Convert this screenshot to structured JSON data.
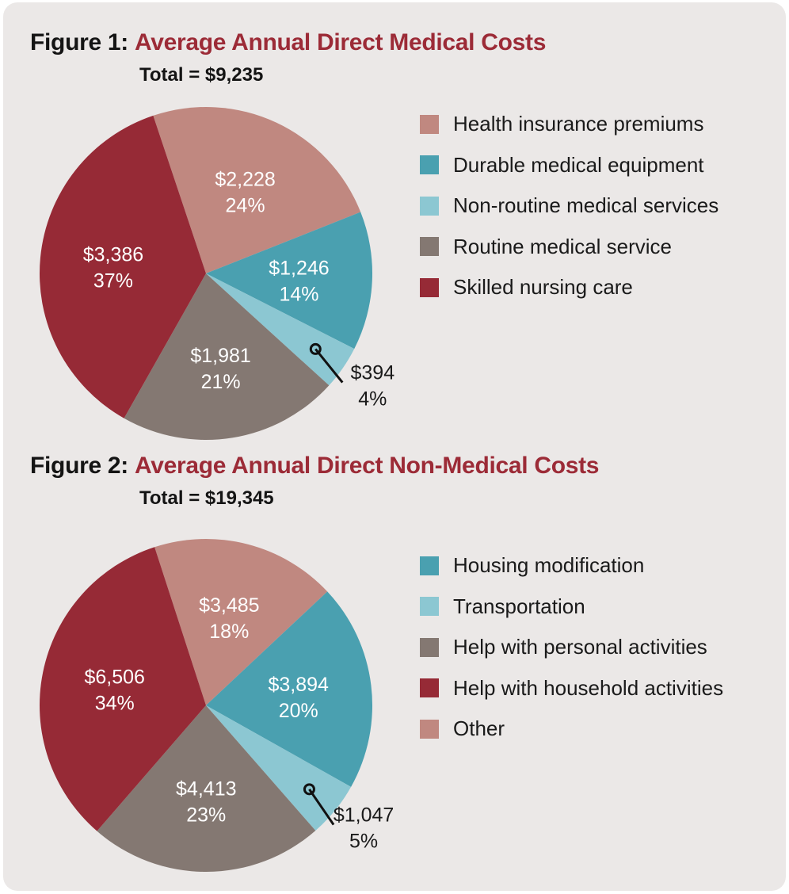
{
  "colors": {
    "health_insurance": "#c08880",
    "durable_equipment": "#4aa0b0",
    "non_routine": "#8cc7d2",
    "routine": "#847872",
    "skilled_nursing": "#962a36",
    "housing": "#4aa0b0",
    "transportation": "#8cc7d2",
    "personal": "#847872",
    "household": "#962a36",
    "other": "#c08880"
  },
  "chart_data": [
    {
      "type": "pie",
      "figure_label": "Figure 1:",
      "title": "Average Annual Direct Medical Costs",
      "subtitle": "Total = $9,235",
      "legend_position": "right",
      "slices": [
        {
          "name": "Health insurance premiums",
          "value": 2228,
          "value_label": "$2,228",
          "percent_label": "24%",
          "color": "#c08880"
        },
        {
          "name": "Durable medical equipment",
          "value": 1246,
          "value_label": "$1,246",
          "percent_label": "14%",
          "color": "#4aa0b0"
        },
        {
          "name": "Non-routine medical services",
          "value": 394,
          "value_label": "$394",
          "percent_label": "4%",
          "color": "#8cc7d2",
          "callout": true
        },
        {
          "name": "Routine medical service",
          "value": 1981,
          "value_label": "$1,981",
          "percent_label": "21%",
          "color": "#847872"
        },
        {
          "name": "Skilled nursing care",
          "value": 3386,
          "value_label": "$3,386",
          "percent_label": "37%",
          "color": "#962a36"
        }
      ],
      "legend": [
        "Health insurance premiums",
        "Durable medical equipment",
        "Non-routine medical services",
        "Routine medical service",
        "Skilled nursing care"
      ]
    },
    {
      "type": "pie",
      "figure_label": "Figure 2:",
      "title": "Average Annual Direct Non-Medical Costs",
      "subtitle": "Total = $19,345",
      "legend_position": "right",
      "slices": [
        {
          "name": "Other",
          "value": 3485,
          "value_label": "$3,485",
          "percent_label": "18%",
          "color": "#c08880"
        },
        {
          "name": "Housing modification",
          "value": 3894,
          "value_label": "$3,894",
          "percent_label": "20%",
          "color": "#4aa0b0"
        },
        {
          "name": "Transportation",
          "value": 1047,
          "value_label": "$1,047",
          "percent_label": "5%",
          "color": "#8cc7d2",
          "callout": true
        },
        {
          "name": "Help with personal activities",
          "value": 4413,
          "value_label": "$4,413",
          "percent_label": "23%",
          "color": "#847872"
        },
        {
          "name": "Help with household activities",
          "value": 6506,
          "value_label": "$6,506",
          "percent_label": "34%",
          "color": "#962a36"
        }
      ],
      "legend": [
        "Housing modification",
        "Transportation",
        "Help with personal activities",
        "Help with household activities",
        "Other"
      ]
    }
  ]
}
